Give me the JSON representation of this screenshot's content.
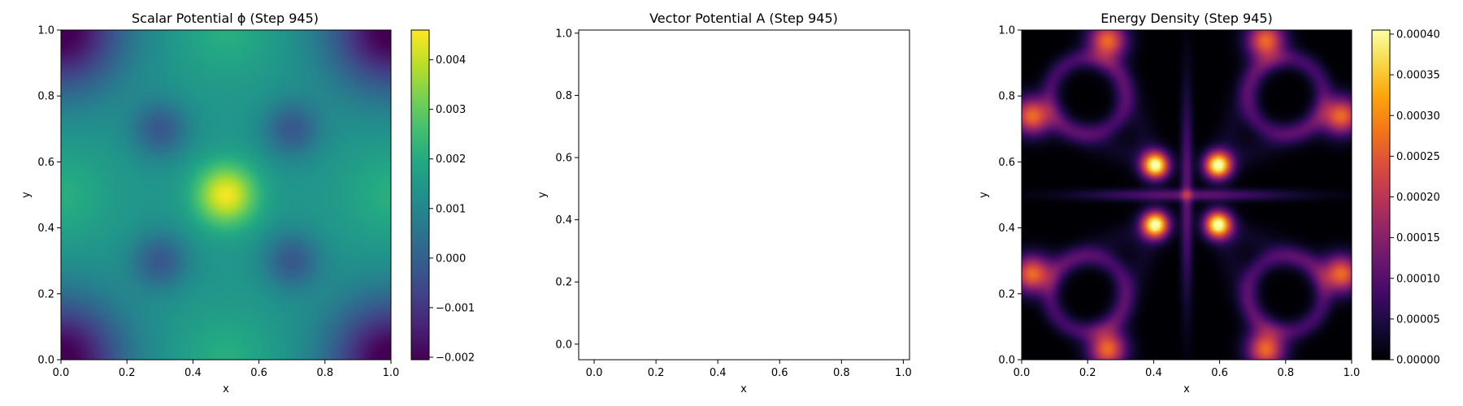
{
  "chart_data": [
    {
      "type": "heatmap",
      "title": "Scalar Potential ϕ (Step 945)",
      "xlabel": "x",
      "ylabel": "y",
      "xlim": [
        0.0,
        1.0
      ],
      "ylim": [
        0.0,
        1.0
      ],
      "xticks": [
        "0.0",
        "0.2",
        "0.4",
        "0.6",
        "0.8",
        "1.0"
      ],
      "yticks": [
        "0.0",
        "0.2",
        "0.4",
        "0.6",
        "0.8",
        "1.0"
      ],
      "colormap": "viridis",
      "field": "scalar_potential",
      "colorbar": {
        "vmin": -0.00205,
        "vmax": 0.0046,
        "ticks": [
          -0.002,
          -0.001,
          0.0,
          0.001,
          0.002,
          0.003,
          0.004
        ],
        "tick_labels": [
          "−0.002",
          "−0.001",
          "0.000",
          "0.001",
          "0.002",
          "0.003",
          "0.004"
        ]
      }
    },
    {
      "type": "scatter",
      "title": "Vector Potential A (Step 945)",
      "xlabel": "x",
      "ylabel": "",
      "xlim": [
        -0.05,
        1.02
      ],
      "ylim": [
        -0.05,
        1.01
      ],
      "xticks": [
        "0.0",
        "0.2",
        "0.4",
        "0.6",
        "0.8",
        "1.0"
      ],
      "yticks": [
        "0.0",
        "0.2",
        "0.4",
        "0.6",
        "0.8",
        "1.0"
      ],
      "series": []
    },
    {
      "type": "heatmap",
      "title": "Energy Density (Step 945)",
      "xlabel": "x",
      "ylabel": "y",
      "xlim": [
        0.0,
        1.0
      ],
      "ylim": [
        0.0,
        1.0
      ],
      "xticks": [
        "0.0",
        "0.2",
        "0.4",
        "0.6",
        "0.8",
        "1.0"
      ],
      "yticks": [
        "0.0",
        "0.2",
        "0.4",
        "0.6",
        "0.8",
        "1.0"
      ],
      "colormap": "inferno",
      "field": "energy_density",
      "colorbar": {
        "vmin": 0.0,
        "vmax": 0.000405,
        "ticks": [
          0.0,
          5e-05,
          0.0001,
          0.00015,
          0.0002,
          0.00025,
          0.0003,
          0.00035,
          0.0004
        ],
        "tick_labels": [
          "0.00000",
          "0.00005",
          "0.00010",
          "0.00015",
          "0.00020",
          "0.00025",
          "0.00030",
          "0.00035",
          "0.00040"
        ]
      }
    }
  ],
  "ylabel_middle": "y"
}
